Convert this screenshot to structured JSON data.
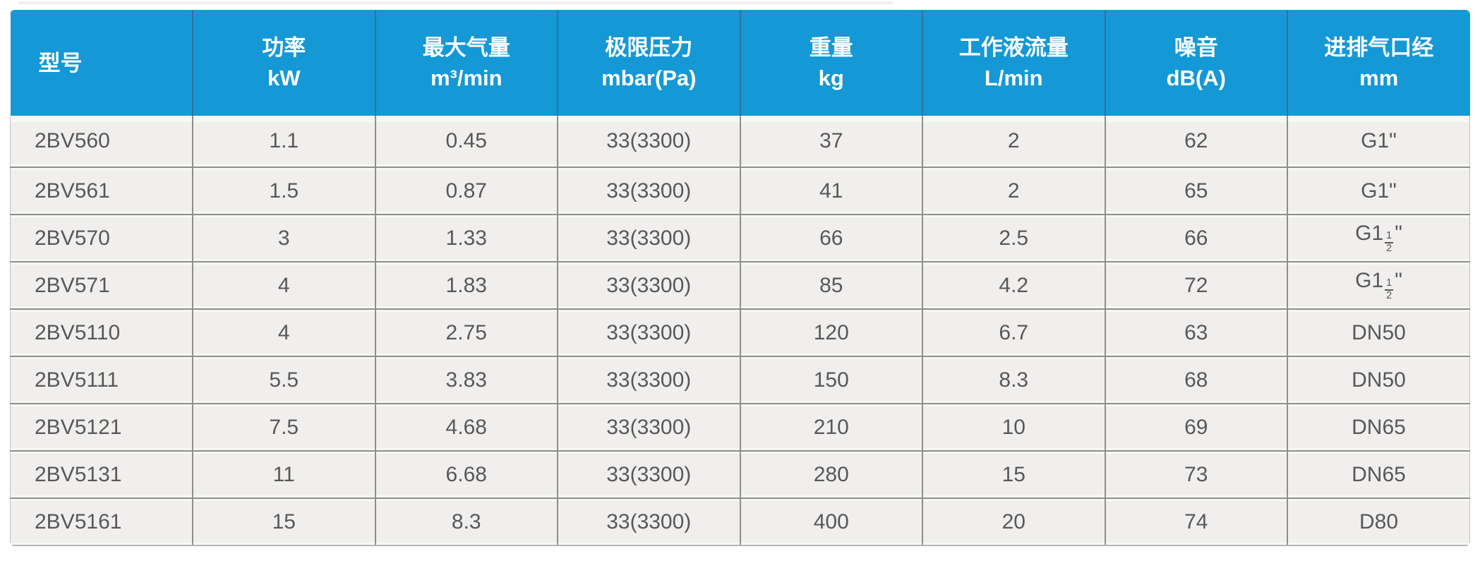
{
  "chart_data": {
    "type": "table",
    "columns": [
      {
        "key": "model",
        "label": "型号",
        "unit": ""
      },
      {
        "key": "power",
        "label": "功率",
        "unit": "kW"
      },
      {
        "key": "max_capacity",
        "label": "最大气量",
        "unit": "m³/min"
      },
      {
        "key": "ultimate_pressure",
        "label": "极限压力",
        "unit": "mbar(Pa)"
      },
      {
        "key": "weight",
        "label": "重量",
        "unit": "kg"
      },
      {
        "key": "working_liquid_flow",
        "label": "工作液流量",
        "unit": "L/min"
      },
      {
        "key": "noise",
        "label": "噪音",
        "unit": "dB(A)"
      },
      {
        "key": "port_diameter",
        "label": "进排气口经",
        "unit": "mm"
      }
    ],
    "rows": [
      [
        "2BV560",
        "1.1",
        "0.45",
        "33(3300)",
        "37",
        "2",
        "62",
        "G1\""
      ],
      [
        "2BV561",
        "1.5",
        "0.87",
        "33(3300)",
        "41",
        "2",
        "65",
        "G1\""
      ],
      [
        "2BV570",
        "3",
        "1.33",
        "33(3300)",
        "66",
        "2.5",
        "66",
        "G1½\""
      ],
      [
        "2BV571",
        "4",
        "1.83",
        "33(3300)",
        "85",
        "4.2",
        "72",
        "G1½\""
      ],
      [
        "2BV5110",
        "4",
        "2.75",
        "33(3300)",
        "120",
        "6.7",
        "63",
        "DN50"
      ],
      [
        "2BV5111",
        "5.5",
        "3.83",
        "33(3300)",
        "150",
        "8.3",
        "68",
        "DN50"
      ],
      [
        "2BV5121",
        "7.5",
        "4.68",
        "33(3300)",
        "210",
        "10",
        "69",
        "DN65"
      ],
      [
        "2BV5131",
        "11",
        "6.68",
        "33(3300)",
        "280",
        "15",
        "73",
        "DN65"
      ],
      [
        "2BV5161",
        "15",
        "8.3",
        "33(3300)",
        "400",
        "20",
        "74",
        "D80"
      ]
    ]
  },
  "colors": {
    "header_bg": "#1598d6",
    "header_separator": "#2f739e",
    "header_text": "#ffffff",
    "row_bg": "#f0efed",
    "row_separator": "#8e8e8c",
    "row_gap": "#f7f7f5",
    "outer_border": "#c2c1bf",
    "body_text": "#58585a"
  }
}
